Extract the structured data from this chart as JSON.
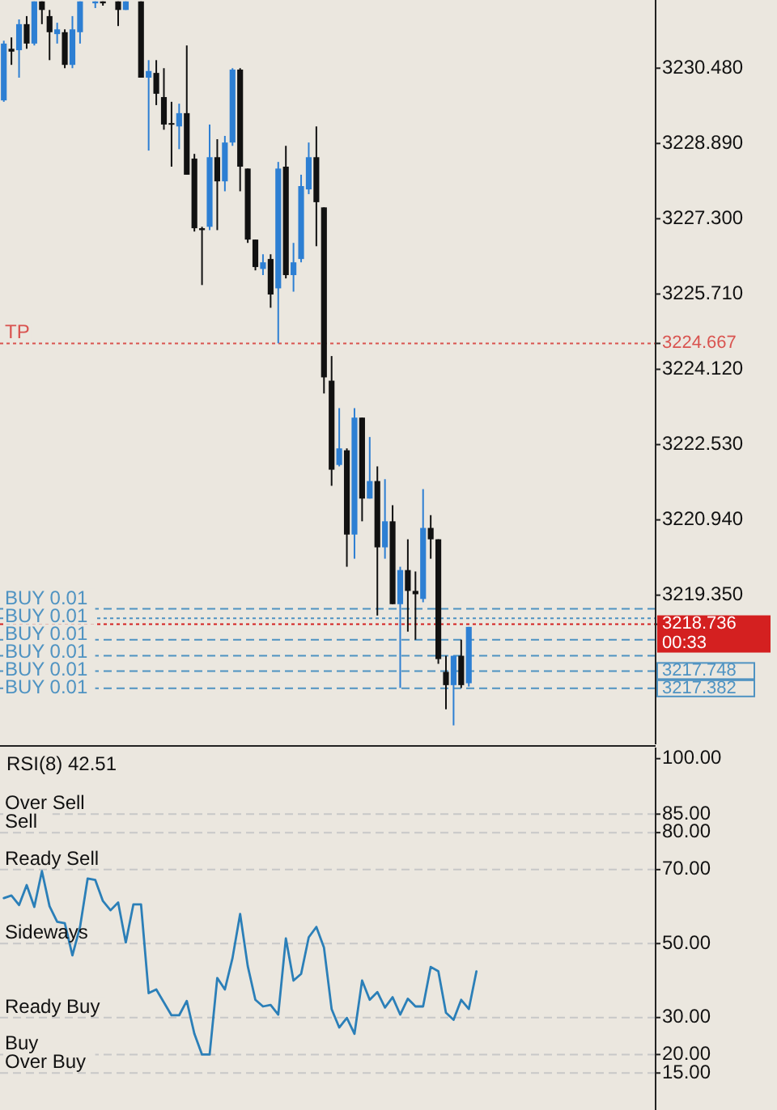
{
  "chart_data": [
    {
      "type": "candlestick",
      "categories": [
        null,
        null,
        null,
        null,
        null,
        null,
        null,
        null,
        null,
        null,
        null,
        null,
        null,
        null,
        null,
        null,
        null,
        null,
        null,
        null,
        null,
        null,
        null,
        null,
        null,
        null,
        null,
        null,
        null,
        null,
        null,
        null,
        null,
        null,
        null,
        null,
        null,
        null,
        null,
        null,
        null,
        null,
        null,
        null,
        null,
        null,
        null,
        null,
        null,
        null,
        null,
        null,
        null,
        null,
        null,
        null,
        null,
        null,
        null,
        null,
        null,
        null,
        null,
        null,
        null,
        null,
        null,
        null,
        null,
        null,
        null,
        null,
        null,
        null,
        null,
        null,
        null,
        null,
        null,
        null,
        null,
        null,
        null,
        null,
        null,
        null
      ],
      "ohlc": [
        [
          3229.8,
          3231.06,
          3229.77,
          3231.0
        ],
        [
          3230.89,
          3231.13,
          3230.55,
          3230.83
        ],
        [
          3230.86,
          3231.51,
          3230.28,
          3231.41
        ],
        [
          3231.41,
          3231.58,
          3230.89,
          3231.0
        ],
        [
          3231.0,
          3231.89,
          3230.96,
          3231.89
        ],
        [
          3231.89,
          3231.89,
          3231.41,
          3231.71
        ],
        [
          3231.58,
          3231.71,
          3230.65,
          3231.24
        ],
        [
          3231.2,
          3231.44,
          3231.0,
          3231.3
        ],
        [
          3231.24,
          3231.3,
          3230.48,
          3230.55
        ],
        [
          3230.55,
          3231.58,
          3230.48,
          3231.3
        ],
        [
          3231.24,
          3231.89,
          3231.0,
          3231.89
        ],
        null,
        [
          3231.85,
          3231.89,
          3231.75,
          3231.89
        ],
        [
          3231.89,
          3231.89,
          3231.8,
          3231.85
        ],
        null,
        [
          3231.89,
          3231.89,
          3231.37,
          3231.71
        ],
        [
          3231.71,
          3231.89,
          3231.71,
          3231.89
        ],
        null,
        [
          3231.89,
          3231.89,
          3230.28,
          3230.28
        ],
        [
          3230.28,
          3230.65,
          3228.74,
          3230.42
        ],
        [
          3230.38,
          3230.65,
          3229.7,
          3229.94
        ],
        [
          3229.87,
          3230.48,
          3229.18,
          3229.29
        ],
        [
          3229.32,
          3229.77,
          3228.4,
          3229.29
        ],
        [
          3229.25,
          3229.73,
          3228.77,
          3229.53
        ],
        [
          3229.53,
          3230.96,
          3228.23,
          3228.23
        ],
        [
          3228.57,
          3228.67,
          3227.03,
          3227.1
        ],
        [
          3227.1,
          3227.13,
          3225.9,
          3227.06
        ],
        [
          3227.13,
          3229.29,
          3227.06,
          3228.6
        ],
        [
          3228.6,
          3228.98,
          3227.06,
          3228.09
        ],
        [
          3228.09,
          3229.05,
          3227.88,
          3228.91
        ],
        [
          3228.91,
          3230.48,
          3228.84,
          3230.45
        ],
        [
          3230.45,
          3230.48,
          3227.88,
          3228.4
        ],
        [
          3228.36,
          3228.36,
          3226.79,
          3226.86
        ],
        [
          3226.86,
          3226.86,
          3226.21,
          3226.28
        ],
        [
          3226.24,
          3226.55,
          3226.11,
          3226.38
        ],
        [
          3226.45,
          3226.55,
          3225.42,
          3225.7
        ],
        [
          3225.83,
          3228.5,
          3224.67,
          3228.36
        ],
        [
          3228.4,
          3228.84,
          3226.04,
          3226.11
        ],
        [
          3226.11,
          3226.79,
          3225.76,
          3226.38
        ],
        [
          3226.45,
          3228.23,
          3226.38,
          3227.99
        ],
        [
          3227.92,
          3228.91,
          3227.82,
          3228.6
        ],
        [
          3228.6,
          3229.25,
          3226.72,
          3227.65
        ],
        [
          3227.54,
          3227.54,
          3223.61,
          3223.95
        ],
        [
          3223.88,
          3224.4,
          3221.66,
          3222.0
        ],
        [
          3222.1,
          3223.3,
          3222.07,
          3222.45
        ],
        [
          3222.41,
          3222.45,
          3219.95,
          3220.63
        ],
        [
          3220.63,
          3223.3,
          3220.12,
          3223.1
        ],
        [
          3223.1,
          3223.1,
          3220.91,
          3221.39
        ],
        [
          3221.39,
          3222.69,
          3221.39,
          3221.76
        ],
        [
          3221.76,
          3222.07,
          3218.92,
          3220.36
        ],
        [
          3220.36,
          3221.8,
          3220.12,
          3220.91
        ],
        [
          3220.91,
          3221.25,
          3219.16,
          3219.16
        ],
        [
          3219.16,
          3219.95,
          3217.39,
          3219.88
        ],
        [
          3219.88,
          3220.53,
          3218.58,
          3219.44
        ],
        [
          3219.44,
          3219.85,
          3218.41,
          3219.37
        ],
        [
          3219.27,
          3221.59,
          3219.2,
          3220.77
        ],
        [
          3220.77,
          3221.04,
          3220.12,
          3220.53
        ],
        [
          3220.53,
          3220.53,
          3217.9,
          3218.0
        ],
        [
          3217.73,
          3218.07,
          3216.94,
          3217.45
        ],
        [
          3217.45,
          3218.07,
          3216.6,
          3218.07
        ],
        [
          3218.07,
          3218.41,
          3217.39,
          3217.45
        ],
        [
          3217.49,
          3218.68,
          3217.42,
          3218.68
        ],
        null,
        null,
        null,
        null,
        null,
        null,
        null,
        null,
        null,
        null,
        null,
        null,
        null,
        null,
        null,
        null,
        null,
        null,
        null,
        null,
        null,
        null,
        null,
        null
      ],
      "colors": [
        "#2d7fd3",
        "#111111",
        "#2d7fd3",
        "#111111",
        "#2d7fd3",
        "#111111",
        "#111111",
        "#2d7fd3",
        "#111111",
        "#2d7fd3",
        "#2d7fd3",
        null,
        "#2d7fd3",
        "#111111",
        null,
        "#111111",
        "#2d7fd3",
        null,
        "#111111",
        "#2d7fd3",
        "#111111",
        "#111111",
        "#111111",
        "#2d7fd3",
        "#111111",
        "#111111",
        "#111111",
        "#2d7fd3",
        "#111111",
        "#2d7fd3",
        "#2d7fd3",
        "#111111",
        "#111111",
        "#111111",
        "#2d7fd3",
        "#111111",
        "#2d7fd3",
        "#111111",
        "#2d7fd3",
        "#2d7fd3",
        "#2d7fd3",
        "#111111",
        "#111111",
        "#111111",
        "#2d7fd3",
        "#111111",
        "#2d7fd3",
        "#111111",
        "#2d7fd3",
        "#111111",
        "#2d7fd3",
        "#111111",
        "#2d7fd3",
        "#111111",
        "#111111",
        "#2d7fd3",
        "#111111",
        "#111111",
        "#111111",
        "#2d7fd3",
        "#111111",
        "#2d7fd3",
        null,
        null,
        null,
        null,
        null,
        null,
        null,
        null,
        null,
        null,
        null,
        null,
        null,
        null,
        null,
        null,
        null,
        null,
        null,
        null,
        null,
        null,
        null,
        null
      ],
      "ylim": [
        3216.2,
        3231.92
      ],
      "yticks": [
        {
          "value": 3230.48,
          "label": "3230.480"
        },
        {
          "value": 3228.89,
          "label": "3228.890"
        },
        {
          "value": 3227.3,
          "label": "3227.300"
        },
        {
          "value": 3225.71,
          "label": "3225.710"
        },
        {
          "value": 3224.12,
          "label": "3224.120"
        },
        {
          "value": 3222.53,
          "label": "3222.530"
        },
        {
          "value": 3220.94,
          "label": "3220.940"
        },
        {
          "value": 3219.35,
          "label": "3219.350"
        },
        3224.667,
        3218.736,
        3217.748,
        3217.382
      ],
      "tick_labels": "y",
      "ref_lines": [
        {
          "axis": "y",
          "value": 3224.667,
          "label": "TP",
          "color": "#d9534f",
          "line_style": "dotted"
        },
        {
          "axis": "y",
          "value": 3219.06,
          "label": "BUY 0.01",
          "color": "#4f93c2",
          "line_style": "dashed"
        },
        {
          "axis": "y",
          "value": 3218.86,
          "label": "BUY 0.01",
          "color": "#4f93c2",
          "line_style": "dotted"
        },
        {
          "axis": "y",
          "value": 3218.736,
          "color": "#d42020",
          "line_style": "dotted"
        },
        {
          "axis": "y",
          "value": 3218.41,
          "label": "BUY 0.01",
          "color": "#4f93c2",
          "line_style": "dashed"
        },
        {
          "axis": "y",
          "value": 3218.07,
          "label": "BUY 0.01",
          "color": "#4f93c2",
          "line_style": "dashed"
        },
        {
          "axis": "y",
          "value": 3217.748,
          "label": "BUY 0.01",
          "color": "#4f93c2",
          "line_style": "dashed"
        },
        {
          "axis": "y",
          "value": 3217.382,
          "label": "BUY 0.01",
          "color": "#4f93c2",
          "line_style": "dashed"
        }
      ],
      "annotations": [
        "00:33"
      ]
    },
    {
      "type": "line",
      "title": "RSI(8) 42.51",
      "categories": [
        null,
        null,
        null,
        null,
        null,
        null,
        null,
        null,
        null,
        null,
        null,
        null,
        null,
        null,
        null,
        null,
        null,
        null,
        null,
        null,
        null,
        null,
        null,
        null,
        null,
        null,
        null,
        null,
        null,
        null,
        null,
        null,
        null,
        null,
        null,
        null,
        null,
        null,
        null,
        null,
        null,
        null,
        null,
        null,
        null,
        null,
        null,
        null,
        null,
        null,
        null,
        null,
        null,
        null,
        null,
        null,
        null,
        null,
        null,
        null,
        null,
        null,
        null,
        null,
        null,
        null,
        null,
        null,
        null,
        null,
        null,
        null,
        null,
        null,
        null,
        null,
        null,
        null,
        null,
        null,
        null,
        null,
        null,
        null,
        null,
        null
      ],
      "series": [
        {
          "color": "#2b7fb8",
          "values": [
            62.3,
            63.0,
            60.4,
            65.8,
            59.9,
            69.6,
            60.1,
            55.9,
            55.5,
            46.8,
            54.5,
            67.6,
            67.2,
            61.5,
            59.0,
            61.1,
            50.3,
            60.6,
            60.6,
            36.6,
            37.6,
            34.1,
            30.6,
            30.6,
            34.5,
            25.6,
            20.0,
            20.0,
            40.7,
            37.6,
            46.1,
            58.0,
            43.9,
            34.8,
            33.0,
            33.4,
            30.8,
            51.4,
            40.0,
            41.8,
            51.7,
            54.5,
            48.9,
            32.3,
            27.3,
            29.9,
            25.6,
            40.0,
            34.8,
            36.9,
            32.7,
            35.5,
            30.8,
            35.1,
            33.0,
            33.0,
            43.7,
            42.5,
            31.3,
            29.4,
            34.8,
            32.3,
            42.5,
            null,
            null,
            null,
            null,
            null,
            null,
            null,
            null,
            null,
            null,
            null,
            null,
            null,
            null,
            null,
            null,
            null,
            null,
            null,
            null,
            null,
            null,
            null
          ]
        }
      ],
      "ylim": [
        5,
        103
      ],
      "yticks": [
        {
          "value": 100,
          "label": "100.00"
        },
        {
          "value": 85,
          "label": "85.00"
        },
        {
          "value": 80,
          "label": "80.00"
        },
        {
          "value": 70,
          "label": "70.00"
        },
        {
          "value": 50,
          "label": "50.00"
        },
        {
          "value": 30,
          "label": "30.00"
        },
        {
          "value": 20,
          "label": "20.00"
        },
        {
          "value": 15,
          "label": "15.00"
        }
      ],
      "tick_labels": "y",
      "ref_lines": [
        {
          "axis": "y",
          "value": 85,
          "label": "Over Sell",
          "color": "#c8c8c8",
          "line_style": "dashed"
        },
        {
          "axis": "y",
          "value": 80,
          "label": "Sell",
          "color": "#c8c8c8",
          "line_style": "dashed"
        },
        {
          "axis": "y",
          "value": 70,
          "label": "Ready Sell",
          "color": "#c8c8c8",
          "line_style": "dashed"
        },
        {
          "axis": "y",
          "value": 50,
          "label": "Sideways",
          "color": "#c8c8c8",
          "line_style": "dashed"
        },
        {
          "axis": "y",
          "value": 30,
          "label": "Ready Buy",
          "color": "#c8c8c8",
          "line_style": "dashed"
        },
        {
          "axis": "y",
          "value": 20,
          "label": "Buy",
          "color": "#c8c8c8",
          "line_style": "dashed"
        },
        {
          "axis": "y",
          "value": 15,
          "label": "Over Buy",
          "color": "#c8c8c8",
          "line_style": "dashed"
        }
      ]
    }
  ]
}
